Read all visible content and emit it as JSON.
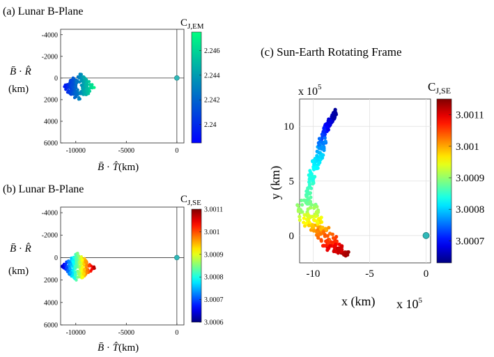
{
  "chart_data": [
    {
      "id": "a",
      "type": "scatter",
      "title": "(a) Lunar B-Plane",
      "xlabel": "B̄ · T̂ (km)",
      "ylabel_line1": "B̄ · R̂",
      "ylabel_line2": "(km)",
      "xlim": [
        -11500,
        700
      ],
      "ylim": [
        6000,
        -4500
      ],
      "y_reversed": true,
      "xticks": [
        -10000,
        -5000,
        0
      ],
      "yticks": [
        -4000,
        -2000,
        0,
        2000,
        4000,
        6000
      ],
      "colorbar": {
        "title": "C",
        "title_subscript": "J,EM",
        "colormap": "winter",
        "range": [
          2.2385,
          2.2475
        ],
        "ticks": [
          "2.24",
          "2.242",
          "2.244",
          "2.246"
        ],
        "tick_values": [
          2.24,
          2.242,
          2.244,
          2.246
        ]
      },
      "reference_point": {
        "x": 0,
        "y": 0,
        "color": "#2fb8b8"
      },
      "cluster": {
        "x_center": -9700,
        "y_center": 850,
        "x_half_width": 1700,
        "y_half_height": 1400,
        "points": 260
      }
    },
    {
      "id": "b",
      "type": "scatter",
      "title": "(b) Lunar B-Plane",
      "xlabel": "B̄ · T̂ (km)",
      "ylabel_line1": "B̄ · R̂",
      "ylabel_line2": "(km)",
      "xlim": [
        -11500,
        700
      ],
      "ylim": [
        6000,
        -4500
      ],
      "y_reversed": true,
      "xticks": [
        -10000,
        -5000,
        0
      ],
      "yticks": [
        -4000,
        -2000,
        0,
        2000,
        4000,
        6000
      ],
      "colorbar": {
        "title": "C",
        "title_subscript": "J,SE",
        "colormap": "jet",
        "range": [
          3.0006,
          3.0011
        ],
        "ticks": [
          "3.0011",
          "3.001",
          "3.0009",
          "3.0008",
          "3.0007",
          "3.0006"
        ],
        "tick_values": [
          3.0011,
          3.001,
          3.0009,
          3.0008,
          3.0007,
          3.0006
        ]
      },
      "reference_point": {
        "x": 0,
        "y": 0,
        "color": "#2fb8b8"
      },
      "cluster": {
        "x_center": -9800,
        "y_center": 850,
        "x_half_width": 1800,
        "y_half_height": 1300,
        "points": 300
      }
    },
    {
      "id": "c",
      "type": "scatter",
      "title": "(c) Sun-Earth Rotating Frame",
      "xlabel": "x (km)",
      "ylabel": "y (km)",
      "x_multiplier": "x 10",
      "x_multiplier_exp": "5",
      "y_multiplier": "x 10",
      "y_multiplier_exp": "5",
      "xlim": [
        -11.2,
        0.4
      ],
      "ylim": [
        -2.5,
        12.5
      ],
      "xticks": [
        -10,
        -5,
        0
      ],
      "yticks": [
        0,
        5,
        10
      ],
      "grid": true,
      "colorbar": {
        "title": "C",
        "title_subscript": "J,SE",
        "colormap": "jet",
        "range": [
          3.00063,
          3.00115
        ],
        "ticks": [
          "3.0011",
          "3.001",
          "3.0009",
          "3.0008",
          "3.0007"
        ],
        "tick_values": [
          3.0011,
          3.001,
          3.0009,
          3.0008,
          3.0007
        ]
      },
      "reference_point": {
        "x": 0,
        "y": 0,
        "color": "#2fb8b8"
      },
      "curve_points": [
        {
          "x": -8.0,
          "y": 11.3,
          "c": 3.00064
        },
        {
          "x": -8.6,
          "y": 10.2,
          "c": 3.00068
        },
        {
          "x": -9.0,
          "y": 9.6,
          "c": 3.00071
        },
        {
          "x": -9.4,
          "y": 7.5,
          "c": 3.0008
        },
        {
          "x": -10.0,
          "y": 5.8,
          "c": 3.00083
        },
        {
          "x": -10.6,
          "y": 3.0,
          "c": 3.00088
        },
        {
          "x": -10.3,
          "y": 1.6,
          "c": 3.00094
        },
        {
          "x": -9.4,
          "y": 0.5,
          "c": 3.00101
        },
        {
          "x": -8.3,
          "y": -0.9,
          "c": 3.00108
        },
        {
          "x": -7.1,
          "y": -1.7,
          "c": 3.00114
        }
      ]
    }
  ]
}
